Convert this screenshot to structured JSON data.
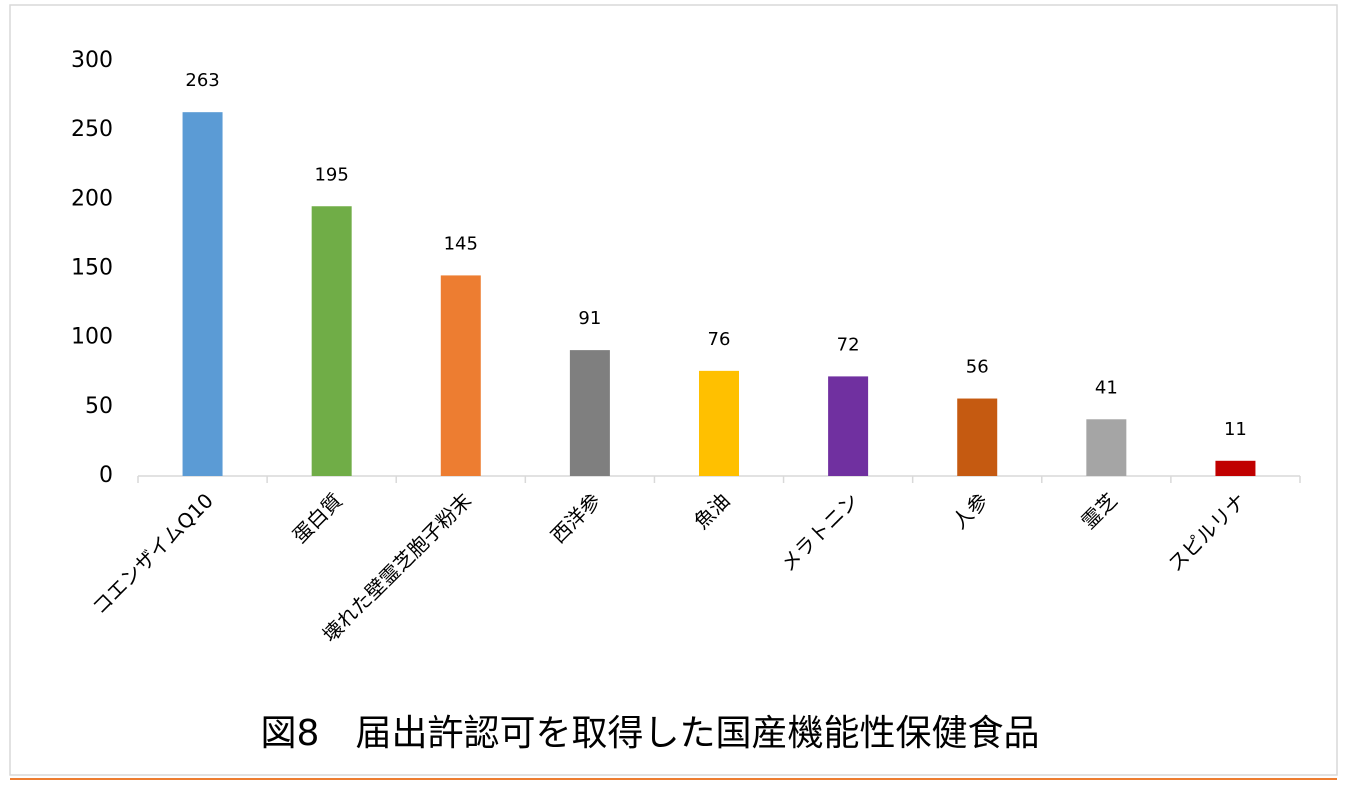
{
  "chart_data": {
    "type": "bar",
    "title": "図8　届出許認可を取得した国産機能性保健食品",
    "categories": [
      "コエンザイムQ10",
      "蛋白質",
      "壊れた壁霊芝胞子粉末",
      "西洋参",
      "魚油",
      "メラトニン",
      "人参",
      "霊芝",
      "スピルリナ"
    ],
    "values": [
      263,
      195,
      145,
      91,
      76,
      72,
      56,
      41,
      11
    ],
    "colors": [
      "#5b9bd5",
      "#70ad47",
      "#ed7d31",
      "#7f7f7f",
      "#ffc000",
      "#7030a0",
      "#c55a11",
      "#a5a5a5",
      "#c00000"
    ],
    "ylim": [
      0,
      300
    ],
    "yticks": [
      0,
      50,
      100,
      150,
      200,
      250,
      300
    ],
    "grid": false
  }
}
